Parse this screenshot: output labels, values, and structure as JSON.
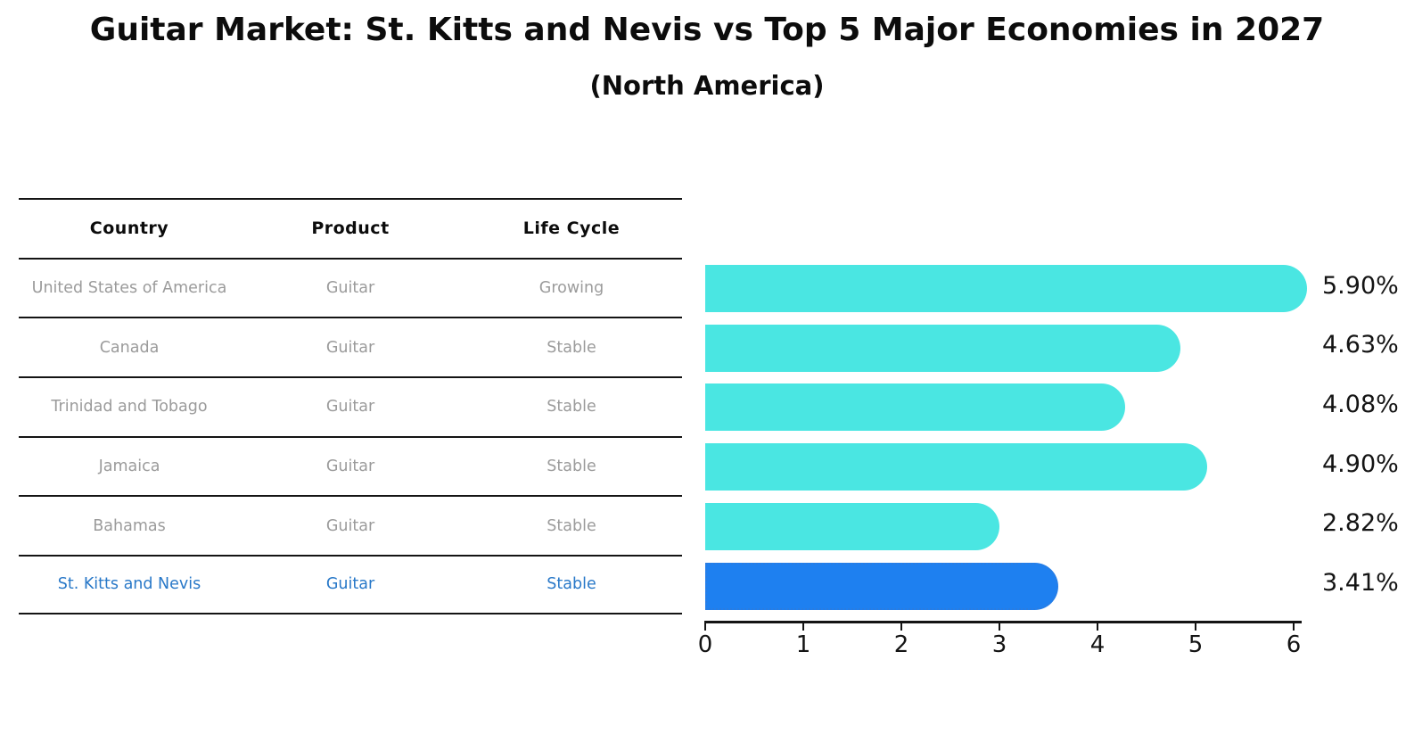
{
  "title": "Guitar Market: St. Kitts and Nevis vs Top 5 Major Economies in 2027",
  "subtitle": "(North America)",
  "table": {
    "headers": [
      "Country",
      "Product",
      "Life Cycle"
    ],
    "rows": [
      {
        "country": "United States of America",
        "product": "Guitar",
        "life_cycle": "Growing",
        "highlighted": false
      },
      {
        "country": "Canada",
        "product": "Guitar",
        "life_cycle": "Stable",
        "highlighted": false
      },
      {
        "country": "Trinidad and Tobago",
        "product": "Guitar",
        "life_cycle": "Stable",
        "highlighted": false
      },
      {
        "country": "Jamaica",
        "product": "Guitar",
        "life_cycle": "Stable",
        "highlighted": false
      },
      {
        "country": "Bahamas",
        "product": "Guitar",
        "life_cycle": "Stable",
        "highlighted": false
      },
      {
        "country": "St. Kitts and Nevis",
        "product": "Guitar",
        "life_cycle": "Stable",
        "highlighted": true
      }
    ]
  },
  "chart_data": {
    "type": "bar",
    "orientation": "horizontal",
    "title": "Guitar Market: St. Kitts and Nevis vs Top 5 Major Economies in 2027 (North America)",
    "categories": [
      "United States of America",
      "Canada",
      "Trinidad and Tobago",
      "Jamaica",
      "Bahamas",
      "St. Kitts and Nevis"
    ],
    "values": [
      5.9,
      4.63,
      4.08,
      4.9,
      2.82,
      3.41
    ],
    "value_labels": [
      "5.90%",
      "4.63%",
      "4.08%",
      "4.90%",
      "2.82%",
      "3.41%"
    ],
    "unit": "percent",
    "xlim": [
      0,
      6.2
    ],
    "xticks": [
      0,
      1,
      2,
      3,
      4,
      5,
      6
    ],
    "grid": false,
    "legend": "none",
    "highlight_index": 5
  },
  "colors": {
    "bar": "#4ae6e2",
    "highlight_bar": "#1e80f0",
    "highlight_border": "#2b7ce0",
    "highlight_text": "#2878c8",
    "row_text": "#9b9b9b",
    "axis_text": "#141414"
  }
}
